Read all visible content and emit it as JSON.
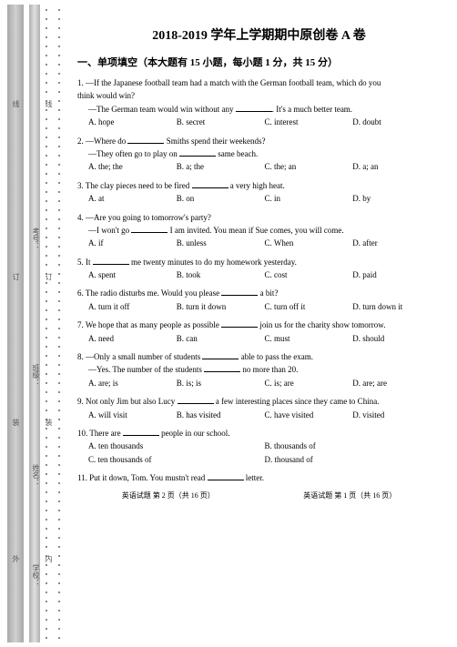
{
  "title": "2018-2019 学年上学期期中原创卷 A 卷",
  "section": "一、单项填空（本大题有 15 小题，每小题 1 分，共 15 分）",
  "margin": {
    "labels": [
      "线",
      "线",
      "考号：",
      "订",
      "订",
      "班级：",
      "装",
      "装",
      "姓名：",
      "外",
      "内",
      "学校："
    ]
  },
  "q1": {
    "stem": "1. —If the Japanese football team had a match with the German football team, which do you",
    "stem2": "think would win?",
    "line2": "—The German team would win without any",
    "line2b": ". It's a much better team.",
    "a": "A. hope",
    "b": "B. secret",
    "c": "C. interest",
    "d": "D. doubt"
  },
  "q2": {
    "stem": "2. —Where do",
    "stem_b": "Smiths spend their weekends?",
    "line2": "—They often go to play on",
    "line2b": "same beach.",
    "a": "A. the; the",
    "b": "B. a; the",
    "c": "C. the; an",
    "d": "D. a; an"
  },
  "q3": {
    "stem": "3. The clay pieces need to be fired",
    "stem_b": "a very high heat.",
    "a": "A. at",
    "b": "B. on",
    "c": "C. in",
    "d": "D. by"
  },
  "q4": {
    "stem": "4. —Are you going to tomorrow's party?",
    "line2": "—I won't go",
    "line2b": "I am invited. You mean if Sue comes, you will come.",
    "a": "A. if",
    "b": "B. unless",
    "c": "C. When",
    "d": "D. after"
  },
  "q5": {
    "stem": "5. It",
    "stem_b": "me twenty minutes to do my homework yesterday.",
    "a": "A. spent",
    "b": "B. took",
    "c": "C. cost",
    "d": "D. paid"
  },
  "q6": {
    "stem": "6. The radio disturbs me. Would you please",
    "stem_b": "a bit?",
    "a": "A. turn it off",
    "b": "B. turn it down",
    "c": "C. turn off it",
    "d": "D. turn down it"
  },
  "q7": {
    "stem": "7. We hope that as many people as possible",
    "stem_b": "join us for the charity show tomorrow.",
    "a": "A. need",
    "b": "B. can",
    "c": "C. must",
    "d": "D. should"
  },
  "q8": {
    "stem": "8. —Only a small number of students",
    "stem_b": "able to pass the exam.",
    "line2": "—Yes. The number of the students",
    "line2b": "no more than 20.",
    "a": "A. are; is",
    "b": "B. is; is",
    "c": "C. is; are",
    "d": "D. are; are"
  },
  "q9": {
    "stem": "9. Not only Jim but also Lucy",
    "stem_b": "a few interesting places since they came to China.",
    "a": "A. will visit",
    "b": "B. has visited",
    "c": "C. have visited",
    "d": "D. visited"
  },
  "q10": {
    "stem": "10. There are",
    "stem_b": "people in our school.",
    "a": "A. ten thousands",
    "b": "B. thousands of",
    "c": "C. ten thousands of",
    "d": "D. thousand of"
  },
  "q11": {
    "stem": "11. Put it down, Tom. You mustn't read",
    "stem_b": "letter."
  },
  "footer": {
    "left": "英语试题 第 2 页（共 16 页）",
    "right": "英语试题 第 1 页（共 16 页）"
  }
}
